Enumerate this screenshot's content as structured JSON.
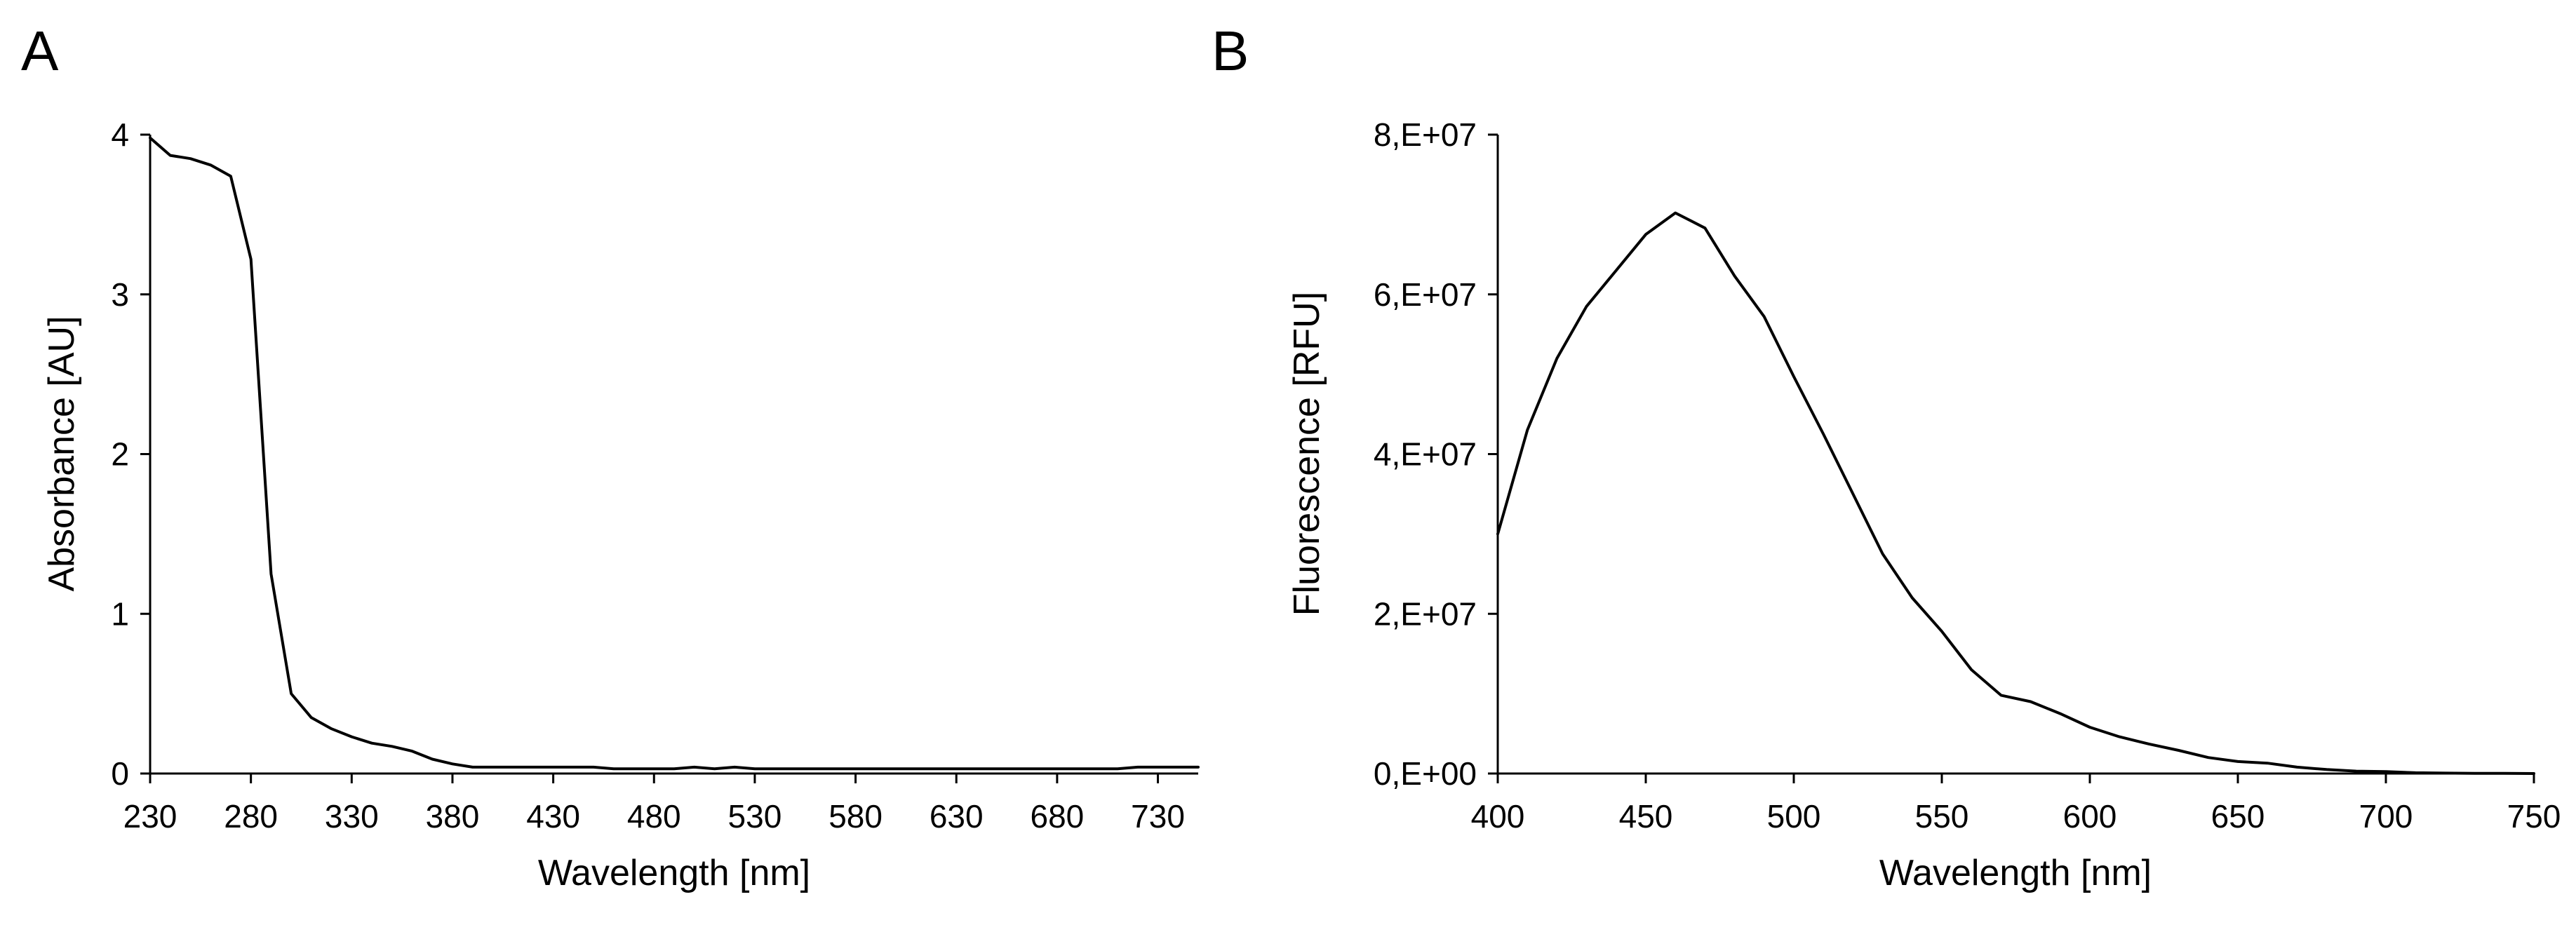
{
  "chart_data": [
    {
      "panel_label": "A",
      "type": "line",
      "title": "",
      "xlabel": "Wavelength [nm]",
      "ylabel": "Absorbance [AU]",
      "xlim": [
        230,
        750
      ],
      "ylim": [
        0,
        4
      ],
      "x_ticks": [
        "230",
        "280",
        "330",
        "380",
        "430",
        "480",
        "530",
        "580",
        "630",
        "680",
        "730"
      ],
      "y_ticks": [
        "0",
        "1",
        "2",
        "3",
        "4"
      ],
      "grid": false,
      "legend": "none",
      "series": [
        {
          "x": [
            230,
            240,
            250,
            260,
            270,
            280,
            290,
            300,
            310,
            320,
            330,
            340,
            350,
            360,
            370,
            380,
            390,
            400,
            410,
            420,
            430,
            440,
            450,
            460,
            470,
            480,
            490,
            500,
            510,
            520,
            530,
            540,
            560,
            580,
            600,
            620,
            640,
            660,
            680,
            700,
            710,
            720,
            730,
            740,
            750
          ],
          "y": [
            3.98,
            3.87,
            3.85,
            3.81,
            3.74,
            3.22,
            1.25,
            0.5,
            0.35,
            0.28,
            0.23,
            0.19,
            0.17,
            0.14,
            0.09,
            0.06,
            0.04,
            0.04,
            0.04,
            0.04,
            0.04,
            0.04,
            0.04,
            0.03,
            0.03,
            0.03,
            0.03,
            0.04,
            0.03,
            0.04,
            0.03,
            0.03,
            0.03,
            0.03,
            0.03,
            0.03,
            0.03,
            0.03,
            0.03,
            0.03,
            0.03,
            0.04,
            0.04,
            0.04,
            0.04
          ]
        }
      ]
    },
    {
      "panel_label": "B",
      "type": "line",
      "title": "",
      "xlabel": "Wavelength [nm]",
      "ylabel": "Fluorescence [RFU]",
      "xlim": [
        400,
        750
      ],
      "ylim": [
        0,
        80000000
      ],
      "x_ticks": [
        "400",
        "450",
        "500",
        "550",
        "600",
        "650",
        "700",
        "750"
      ],
      "y_ticks": [
        "0,E+00",
        "2,E+07",
        "4,E+07",
        "6,E+07",
        "8,E+07"
      ],
      "grid": false,
      "legend": "none",
      "series": [
        {
          "x": [
            400,
            410,
            420,
            430,
            440,
            450,
            460,
            470,
            480,
            490,
            500,
            510,
            520,
            530,
            540,
            550,
            560,
            570,
            580,
            590,
            600,
            610,
            620,
            630,
            640,
            650,
            660,
            670,
            680,
            690,
            700,
            710,
            720,
            730,
            740,
            750
          ],
          "y": [
            30000000,
            43000000,
            52000000,
            58500000,
            63000000,
            67500000,
            70200000,
            68300000,
            62300000,
            57200000,
            49700000,
            42500000,
            35000000,
            27500000,
            22000000,
            17800000,
            13000000,
            9800000,
            9000000,
            7500000,
            5800000,
            4600000,
            3700000,
            2900000,
            2000000,
            1500000,
            1300000,
            800000,
            500000,
            300000,
            250000,
            100000,
            50000,
            30000,
            20000,
            0
          ]
        }
      ]
    }
  ]
}
